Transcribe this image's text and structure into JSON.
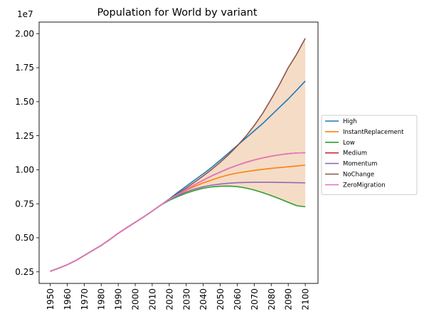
{
  "chart_data": {
    "type": "line",
    "title": "Population for World by variant",
    "xlabel": "",
    "ylabel": "",
    "y_offset_label": "1e7",
    "x_ticks": [
      1950,
      1960,
      1970,
      1980,
      1990,
      2000,
      2010,
      2020,
      2030,
      2040,
      2050,
      2060,
      2070,
      2080,
      2090,
      2100
    ],
    "x_tick_labels": [
      "1950",
      "1960",
      "1970",
      "1980",
      "1990",
      "2000",
      "2010",
      "2020",
      "2030",
      "2040",
      "2050",
      "2060",
      "2070",
      "2080",
      "2090",
      "2100"
    ],
    "y_ticks": [
      0.25,
      0.5,
      0.75,
      1.0,
      1.25,
      1.5,
      1.75,
      2.0
    ],
    "y_tick_labels": [
      "0.25",
      "0.50",
      "0.75",
      "1.00",
      "1.25",
      "1.50",
      "1.75",
      "2.00"
    ],
    "xlim": [
      1943.5,
      2107.5
    ],
    "ylim": [
      0.165,
      2.085
    ],
    "legend_position": "right",
    "grid": false,
    "band": {
      "color": "#f5dcc6",
      "description": "range between Low and NoChange"
    },
    "x": [
      1950,
      1955,
      1960,
      1965,
      1970,
      1975,
      1980,
      1985,
      1990,
      1995,
      2000,
      2005,
      2010,
      2015,
      2020,
      2025,
      2030,
      2035,
      2040,
      2045,
      2050,
      2055,
      2060,
      2065,
      2070,
      2075,
      2080,
      2085,
      2090,
      2095,
      2100
    ],
    "series": [
      {
        "name": "High",
        "color": "#1f77b4",
        "values": [
          0.254,
          0.277,
          0.302,
          0.333,
          0.37,
          0.407,
          0.444,
          0.487,
          0.533,
          0.574,
          0.614,
          0.654,
          0.696,
          0.74,
          0.785,
          0.833,
          0.879,
          0.925,
          0.97,
          1.018,
          1.07,
          1.124,
          1.178,
          1.232,
          1.286,
          1.34,
          1.4,
          1.46,
          1.52,
          1.585,
          1.652
        ]
      },
      {
        "name": "InstantReplacement",
        "color": "#ff7f0e",
        "values": [
          0.254,
          0.277,
          0.302,
          0.333,
          0.37,
          0.407,
          0.444,
          0.487,
          0.533,
          0.574,
          0.614,
          0.654,
          0.696,
          0.74,
          0.78,
          0.818,
          0.85,
          0.878,
          0.903,
          0.925,
          0.946,
          0.963,
          0.976,
          0.986,
          0.995,
          1.003,
          1.01,
          1.016,
          1.022,
          1.028,
          1.034
        ]
      },
      {
        "name": "Low",
        "color": "#2ca02c",
        "values": [
          0.254,
          0.277,
          0.302,
          0.333,
          0.37,
          0.407,
          0.444,
          0.487,
          0.533,
          0.574,
          0.614,
          0.654,
          0.696,
          0.74,
          0.775,
          0.803,
          0.828,
          0.848,
          0.864,
          0.874,
          0.879,
          0.88,
          0.876,
          0.866,
          0.851,
          0.832,
          0.81,
          0.786,
          0.761,
          0.736,
          0.728
        ]
      },
      {
        "name": "Medium",
        "color": "#d62728",
        "values": [
          0.254,
          0.277,
          0.302,
          0.333,
          0.37,
          0.407,
          0.444,
          0.487,
          0.533,
          0.574,
          0.614,
          0.654,
          0.696,
          0.74,
          0.781,
          0.818,
          0.855,
          0.89,
          0.923,
          0.955,
          0.983,
          1.01,
          1.033,
          1.054,
          1.072,
          1.087,
          1.1,
          1.11,
          1.118,
          1.123,
          1.125
        ]
      },
      {
        "name": "Momentum",
        "color": "#9467bd",
        "values": [
          0.254,
          0.277,
          0.302,
          0.333,
          0.37,
          0.407,
          0.444,
          0.487,
          0.533,
          0.574,
          0.614,
          0.654,
          0.696,
          0.74,
          0.78,
          0.812,
          0.838,
          0.859,
          0.875,
          0.887,
          0.895,
          0.901,
          0.905,
          0.907,
          0.908,
          0.908,
          0.908,
          0.907,
          0.906,
          0.905,
          0.904
        ]
      },
      {
        "name": "NoChange",
        "color": "#8c564b",
        "values": [
          0.254,
          0.277,
          0.302,
          0.333,
          0.37,
          0.407,
          0.444,
          0.487,
          0.533,
          0.574,
          0.614,
          0.654,
          0.696,
          0.74,
          0.782,
          0.824,
          0.866,
          0.91,
          0.955,
          1.003,
          1.055,
          1.112,
          1.175,
          1.245,
          1.325,
          1.415,
          1.52,
          1.63,
          1.75,
          1.85,
          1.965
        ]
      },
      {
        "name": "ZeroMigration",
        "color": "#e377c2",
        "values": [
          0.254,
          0.277,
          0.302,
          0.333,
          0.37,
          0.407,
          0.444,
          0.487,
          0.533,
          0.574,
          0.614,
          0.654,
          0.696,
          0.74,
          0.781,
          0.818,
          0.855,
          0.89,
          0.923,
          0.955,
          0.983,
          1.01,
          1.033,
          1.054,
          1.072,
          1.087,
          1.1,
          1.11,
          1.118,
          1.123,
          1.125
        ]
      }
    ]
  }
}
